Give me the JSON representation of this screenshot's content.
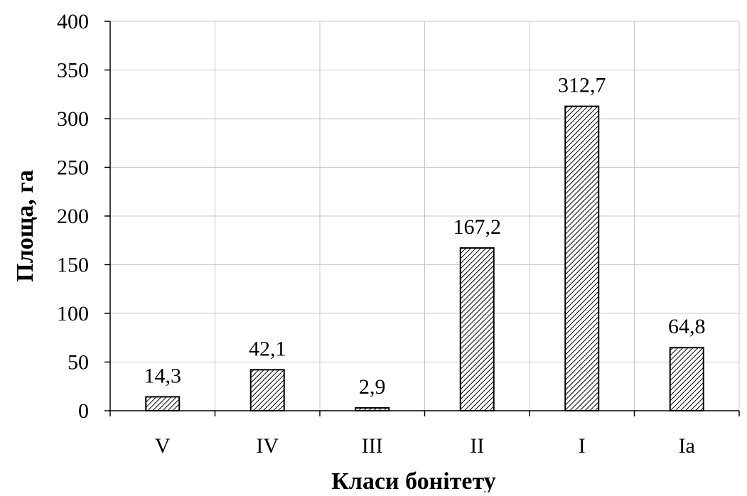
{
  "chart_data": {
    "type": "bar",
    "title": "",
    "xlabel": "Класи бонітету",
    "ylabel": "Площа, га",
    "categories": [
      "V",
      "IV",
      "III",
      "II",
      "I",
      "Ia"
    ],
    "values": [
      14.3,
      42.1,
      2.9,
      167.2,
      312.7,
      64.8
    ],
    "data_labels": [
      "14,3",
      "42,1",
      "2,9",
      "167,2",
      "312,7",
      "64,8"
    ],
    "yticks": [
      "0",
      "50",
      "100",
      "150",
      "200",
      "250",
      "300",
      "350",
      "400"
    ],
    "ylim": [
      0,
      400
    ],
    "grid": true,
    "legend": "none",
    "colors": {
      "bar_fill": "hatched",
      "bar_stroke": "#000000",
      "grid": "#c8c8c8",
      "axis": "#000000"
    }
  }
}
